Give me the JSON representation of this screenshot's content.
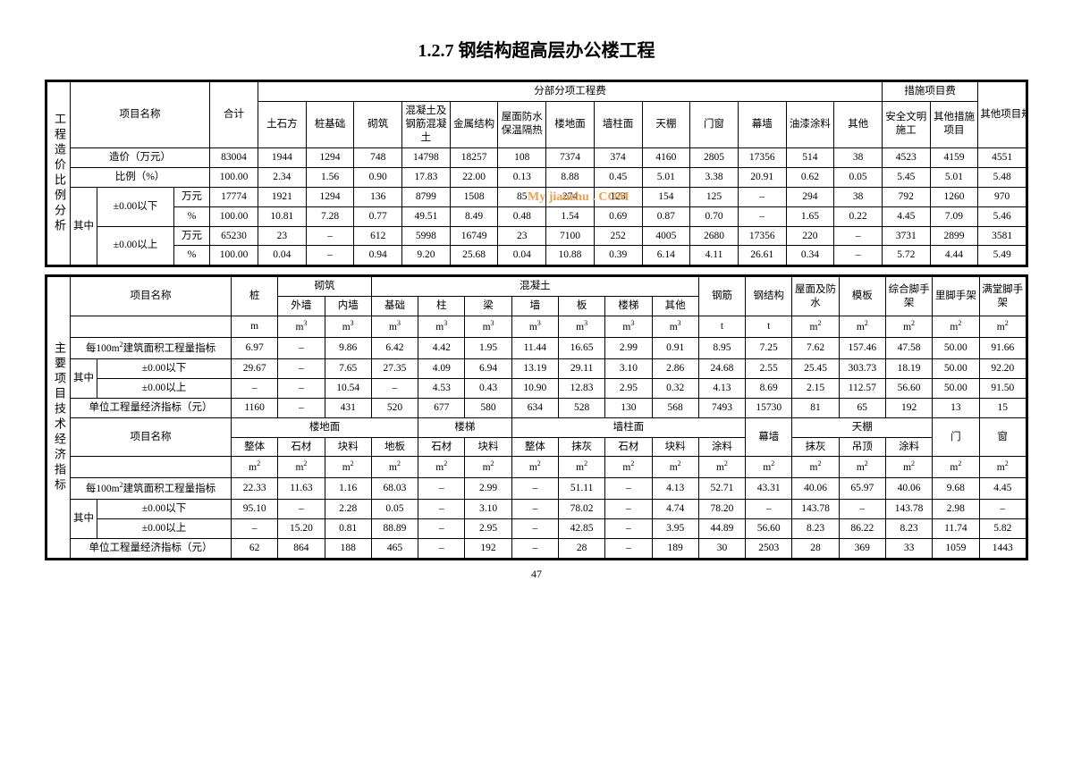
{
  "title": "1.2.7 钢结构超高层办公楼工程",
  "watermark": "My jianzhu . COM",
  "page_number": "47",
  "table1": {
    "vlabel": "工程造价比例分析",
    "header_project": "项目名称",
    "header_total": "合计",
    "group_fbfx": "分部分项工程费",
    "group_cs": "措施项目费",
    "header_other": "其他项目规费税金",
    "cols_fbfx": [
      "土石方",
      "桩基础",
      "砌筑",
      "混凝土及钢筋混凝土",
      "金属结构",
      "屋面防水保温隔热",
      "楼地面",
      "墙柱面",
      "天棚",
      "门窗",
      "幕墙",
      "油漆涂料",
      "其他"
    ],
    "cols_cs": [
      "安全文明施工",
      "其他措施项目"
    ],
    "row_cost": "造价（万元）",
    "row_ratio": "比例（%）",
    "row_qz": "其中",
    "row_below": "±0.00以下",
    "row_above": "±0.00以上",
    "unit_wy": "万元",
    "unit_pct": "%",
    "r_cost": [
      "83004",
      "1944",
      "1294",
      "748",
      "14798",
      "18257",
      "108",
      "7374",
      "374",
      "4160",
      "2805",
      "17356",
      "514",
      "38",
      "4523",
      "4159",
      "4551"
    ],
    "r_ratio": [
      "100.00",
      "2.34",
      "1.56",
      "0.90",
      "17.83",
      "22.00",
      "0.13",
      "8.88",
      "0.45",
      "5.01",
      "3.38",
      "20.91",
      "0.62",
      "0.05",
      "5.45",
      "5.01",
      "5.48"
    ],
    "r_below_w": [
      "17774",
      "1921",
      "1294",
      "136",
      "8799",
      "1508",
      "85",
      "274",
      "123",
      "154",
      "125",
      "–",
      "294",
      "38",
      "792",
      "1260",
      "970"
    ],
    "r_below_p": [
      "100.00",
      "10.81",
      "7.28",
      "0.77",
      "49.51",
      "8.49",
      "0.48",
      "1.54",
      "0.69",
      "0.87",
      "0.70",
      "–",
      "1.65",
      "0.22",
      "4.45",
      "7.09",
      "5.46"
    ],
    "r_above_w": [
      "65230",
      "23",
      "–",
      "612",
      "5998",
      "16749",
      "23",
      "7100",
      "252",
      "4005",
      "2680",
      "17356",
      "220",
      "–",
      "3731",
      "2899",
      "3581"
    ],
    "r_above_p": [
      "100.00",
      "0.04",
      "–",
      "0.94",
      "9.20",
      "25.68",
      "0.04",
      "10.88",
      "0.39",
      "6.14",
      "4.11",
      "26.61",
      "0.34",
      "–",
      "5.72",
      "4.44",
      "5.49"
    ]
  },
  "table2": {
    "vlabel": "主要项目技术经济指标",
    "header_project": "项目名称",
    "h_zhuang": "桩",
    "h_qizhu": "砌筑",
    "h_hnt": "混凝土",
    "h_gj": "钢筋",
    "h_gjg": "钢结构",
    "h_wmfs": "屋面及防水",
    "h_mb": "模板",
    "h_zhsj": "综合脚手架",
    "h_ljsj": "里脚手架",
    "h_mtjsj": "满堂脚手架",
    "sub_qizhu": [
      "外墙",
      "内墙"
    ],
    "sub_hnt": [
      "基础",
      "柱",
      "梁",
      "墙",
      "板",
      "楼梯",
      "其他"
    ],
    "units_a": [
      "m",
      "m³",
      "m³",
      "m³",
      "m³",
      "m³",
      "m³",
      "m³",
      "m³",
      "m³",
      "t",
      "t",
      "m²",
      "m²",
      "m²",
      "m²",
      "m²"
    ],
    "row_per100": "每100m²建筑面积工程量指标",
    "row_qz": "其中",
    "row_below": "±0.00以下",
    "row_above": "±0.00以上",
    "row_econ": "单位工程量经济指标（元）",
    "a_per100": [
      "6.97",
      "–",
      "9.86",
      "6.42",
      "4.42",
      "1.95",
      "11.44",
      "16.65",
      "2.99",
      "0.91",
      "8.95",
      "7.25",
      "7.62",
      "157.46",
      "47.58",
      "50.00",
      "91.66"
    ],
    "a_below": [
      "29.67",
      "–",
      "7.65",
      "27.35",
      "4.09",
      "6.94",
      "13.19",
      "29.11",
      "3.10",
      "2.86",
      "24.68",
      "2.55",
      "25.45",
      "303.73",
      "18.19",
      "50.00",
      "92.20"
    ],
    "a_above": [
      "–",
      "–",
      "10.54",
      "–",
      "4.53",
      "0.43",
      "10.90",
      "12.83",
      "2.95",
      "0.32",
      "4.13",
      "8.69",
      "2.15",
      "112.57",
      "56.60",
      "50.00",
      "91.50"
    ],
    "a_econ": [
      "1160",
      "–",
      "431",
      "520",
      "677",
      "580",
      "634",
      "528",
      "130",
      "568",
      "7493",
      "15730",
      "81",
      "65",
      "192",
      "13",
      "15"
    ],
    "h_ldm": "楼地面",
    "h_lt": "楼梯",
    "h_qzm": "墙柱面",
    "h_mq": "幕墙",
    "h_tp": "天棚",
    "h_men": "门",
    "h_chuang": "窗",
    "sub_ldm": [
      "整体",
      "石材",
      "块料",
      "地板"
    ],
    "sub_lt": [
      "石材",
      "块料"
    ],
    "sub_qzm": [
      "整体",
      "抹灰",
      "石材",
      "块料",
      "涂料"
    ],
    "sub_tp": [
      "抹灰",
      "吊顶",
      "涂料"
    ],
    "units_b": [
      "m²",
      "m²",
      "m²",
      "m²",
      "m²",
      "m²",
      "m²",
      "m²",
      "m²",
      "m²",
      "m²",
      "m²",
      "m²",
      "m²",
      "m²",
      "m²",
      "m²"
    ],
    "b_per100": [
      "22.33",
      "11.63",
      "1.16",
      "68.03",
      "–",
      "2.99",
      "–",
      "51.11",
      "–",
      "4.13",
      "52.71",
      "43.31",
      "40.06",
      "65.97",
      "40.06",
      "9.68",
      "4.45"
    ],
    "b_below": [
      "95.10",
      "–",
      "2.28",
      "0.05",
      "–",
      "3.10",
      "–",
      "78.02",
      "–",
      "4.74",
      "78.20",
      "–",
      "143.78",
      "–",
      "143.78",
      "2.98",
      "–"
    ],
    "b_above": [
      "–",
      "15.20",
      "0.81",
      "88.89",
      "–",
      "2.95",
      "–",
      "42.85",
      "–",
      "3.95",
      "44.89",
      "56.60",
      "8.23",
      "86.22",
      "8.23",
      "11.74",
      "5.82"
    ],
    "b_econ": [
      "62",
      "864",
      "188",
      "465",
      "–",
      "192",
      "–",
      "28",
      "–",
      "189",
      "30",
      "2503",
      "28",
      "369",
      "33",
      "1059",
      "1443"
    ]
  }
}
